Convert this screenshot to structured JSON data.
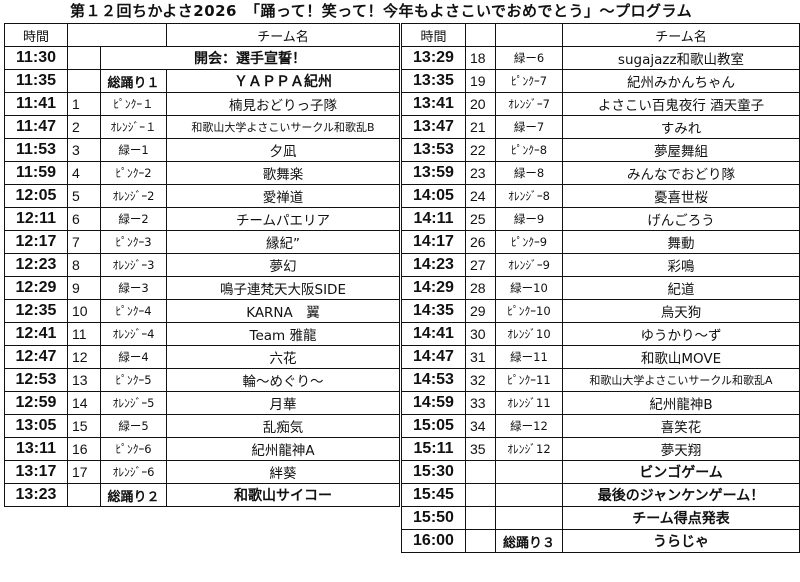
{
  "title": "第１２回ちかよさ2026　「踊って！笑って！今年もよさこいでおめでとう」～プログラム",
  "header": {
    "time": "時間",
    "team": "チーム名"
  },
  "left_rows": [
    {
      "time": "11:30",
      "num": "",
      "label": "",
      "name": "開会：選手宣誓！",
      "merged": true,
      "bold": true
    },
    {
      "time": "11:35",
      "num": "",
      "label": "総踊り１",
      "name": "ＹＡＰＰＡ紀州",
      "bold": true
    },
    {
      "time": "11:41",
      "num": "1",
      "label": "ﾋﾟﾝｸｰ１",
      "name": "楠見おどりっ子隊"
    },
    {
      "time": "11:47",
      "num": "2",
      "label": "ｵﾚﾝｼﾞｰ１",
      "name": "和歌山大学よさこいサークル和歌乱B",
      "small": true
    },
    {
      "time": "11:53",
      "num": "3",
      "label": "緑ー1",
      "name": "夕凪"
    },
    {
      "time": "11:59",
      "num": "4",
      "label": "ﾋﾟﾝｸｰ2",
      "name": "歌舞楽"
    },
    {
      "time": "12:05",
      "num": "5",
      "label": "ｵﾚﾝｼﾞｰ2",
      "name": "愛禅道"
    },
    {
      "time": "12:11",
      "num": "6",
      "label": "緑ー2",
      "name": "チームパエリア"
    },
    {
      "time": "12:17",
      "num": "7",
      "label": "ﾋﾟﾝｸｰ3",
      "name": "縁紀”"
    },
    {
      "time": "12:23",
      "num": "8",
      "label": "ｵﾚﾝｼﾞｰ3",
      "name": "夢幻"
    },
    {
      "time": "12:29",
      "num": "9",
      "label": "緑ー3",
      "name": "鳴子連梵天大阪SIDE"
    },
    {
      "time": "12:35",
      "num": "10",
      "label": "ﾋﾟﾝｸｰ4",
      "name": "KARNA　翼"
    },
    {
      "time": "12:41",
      "num": "11",
      "label": "ｵﾚﾝｼﾞｰ4",
      "name": "Team 雅龍"
    },
    {
      "time": "12:47",
      "num": "12",
      "label": "緑ー4",
      "name": "六花"
    },
    {
      "time": "12:53",
      "num": "13",
      "label": "ﾋﾟﾝｸｰ5",
      "name": "輪～めぐり～"
    },
    {
      "time": "12:59",
      "num": "14",
      "label": "ｵﾚﾝｼﾞｰ5",
      "name": "月華"
    },
    {
      "time": "13:05",
      "num": "15",
      "label": "緑ー5",
      "name": "乱痴気"
    },
    {
      "time": "13:11",
      "num": "16",
      "label": "ﾋﾟﾝｸｰ6",
      "name": "紀州龍神A"
    },
    {
      "time": "13:17",
      "num": "17",
      "label": "ｵﾚﾝｼﾞｰ6",
      "name": "絆葵"
    },
    {
      "time": "13:23",
      "num": "",
      "label": "総踊り２",
      "name": "和歌山サイコー",
      "bold": true
    }
  ],
  "right_rows": [
    {
      "time": "13:29",
      "num": "18",
      "label": "緑ー6",
      "name": "sugajazz和歌山教室"
    },
    {
      "time": "13:35",
      "num": "19",
      "label": "ﾋﾟﾝｸｰ7",
      "name": "紀州みかんちゃん"
    },
    {
      "time": "13:41",
      "num": "20",
      "label": "ｵﾚﾝｼﾞｰ7",
      "name": "よさこい百鬼夜行 酒天童子"
    },
    {
      "time": "13:47",
      "num": "21",
      "label": "緑ー7",
      "name": "すみれ"
    },
    {
      "time": "13:53",
      "num": "22",
      "label": "ﾋﾟﾝｸｰ8",
      "name": "夢屋舞組"
    },
    {
      "time": "13:59",
      "num": "23",
      "label": "緑ー8",
      "name": "みんなでおどり隊"
    },
    {
      "time": "14:05",
      "num": "24",
      "label": "ｵﾚﾝｼﾞｰ8",
      "name": "憂喜世桜"
    },
    {
      "time": "14:11",
      "num": "25",
      "label": "緑ー9",
      "name": "げんごろう"
    },
    {
      "time": "14:17",
      "num": "26",
      "label": "ﾋﾟﾝｸｰ9",
      "name": "舞動"
    },
    {
      "time": "14:23",
      "num": "27",
      "label": "ｵﾚﾝｼﾞｰ9",
      "name": "彩鳴"
    },
    {
      "time": "14:29",
      "num": "28",
      "label": "緑ー10",
      "name": "紀道"
    },
    {
      "time": "14:35",
      "num": "29",
      "label": "ﾋﾟﾝｸｰ10",
      "name": "烏天狗"
    },
    {
      "time": "14:41",
      "num": "30",
      "label": "ｵﾚﾝｼﾞ10",
      "name": "ゆうかり～ず"
    },
    {
      "time": "14:47",
      "num": "31",
      "label": "緑ー11",
      "name": "和歌山MOVE"
    },
    {
      "time": "14:53",
      "num": "32",
      "label": "ﾋﾟﾝｸｰ11",
      "name": "和歌山大学よさこいサークル和歌乱A",
      "small": true
    },
    {
      "time": "14:59",
      "num": "33",
      "label": "ｵﾚﾝｼﾞ11",
      "name": "紀州龍神B"
    },
    {
      "time": "15:05",
      "num": "34",
      "label": "緑ー12",
      "name": "喜笑花"
    },
    {
      "time": "15:11",
      "num": "35",
      "label": "ｵﾚﾝｼﾞ12",
      "name": "夢天翔"
    },
    {
      "time": "15:30",
      "num": "",
      "label": "",
      "name": "ビンゴゲーム",
      "bold": true
    },
    {
      "time": "15:45",
      "num": "",
      "label": "",
      "name": "最後のジャンケンゲーム！",
      "bold": true
    },
    {
      "time": "15:50",
      "num": "",
      "label": "",
      "name": "チーム得点発表",
      "bold": true
    },
    {
      "time": "16:00",
      "num": "",
      "label": "総踊り３",
      "name": "うらじゃ",
      "bold": true
    }
  ]
}
